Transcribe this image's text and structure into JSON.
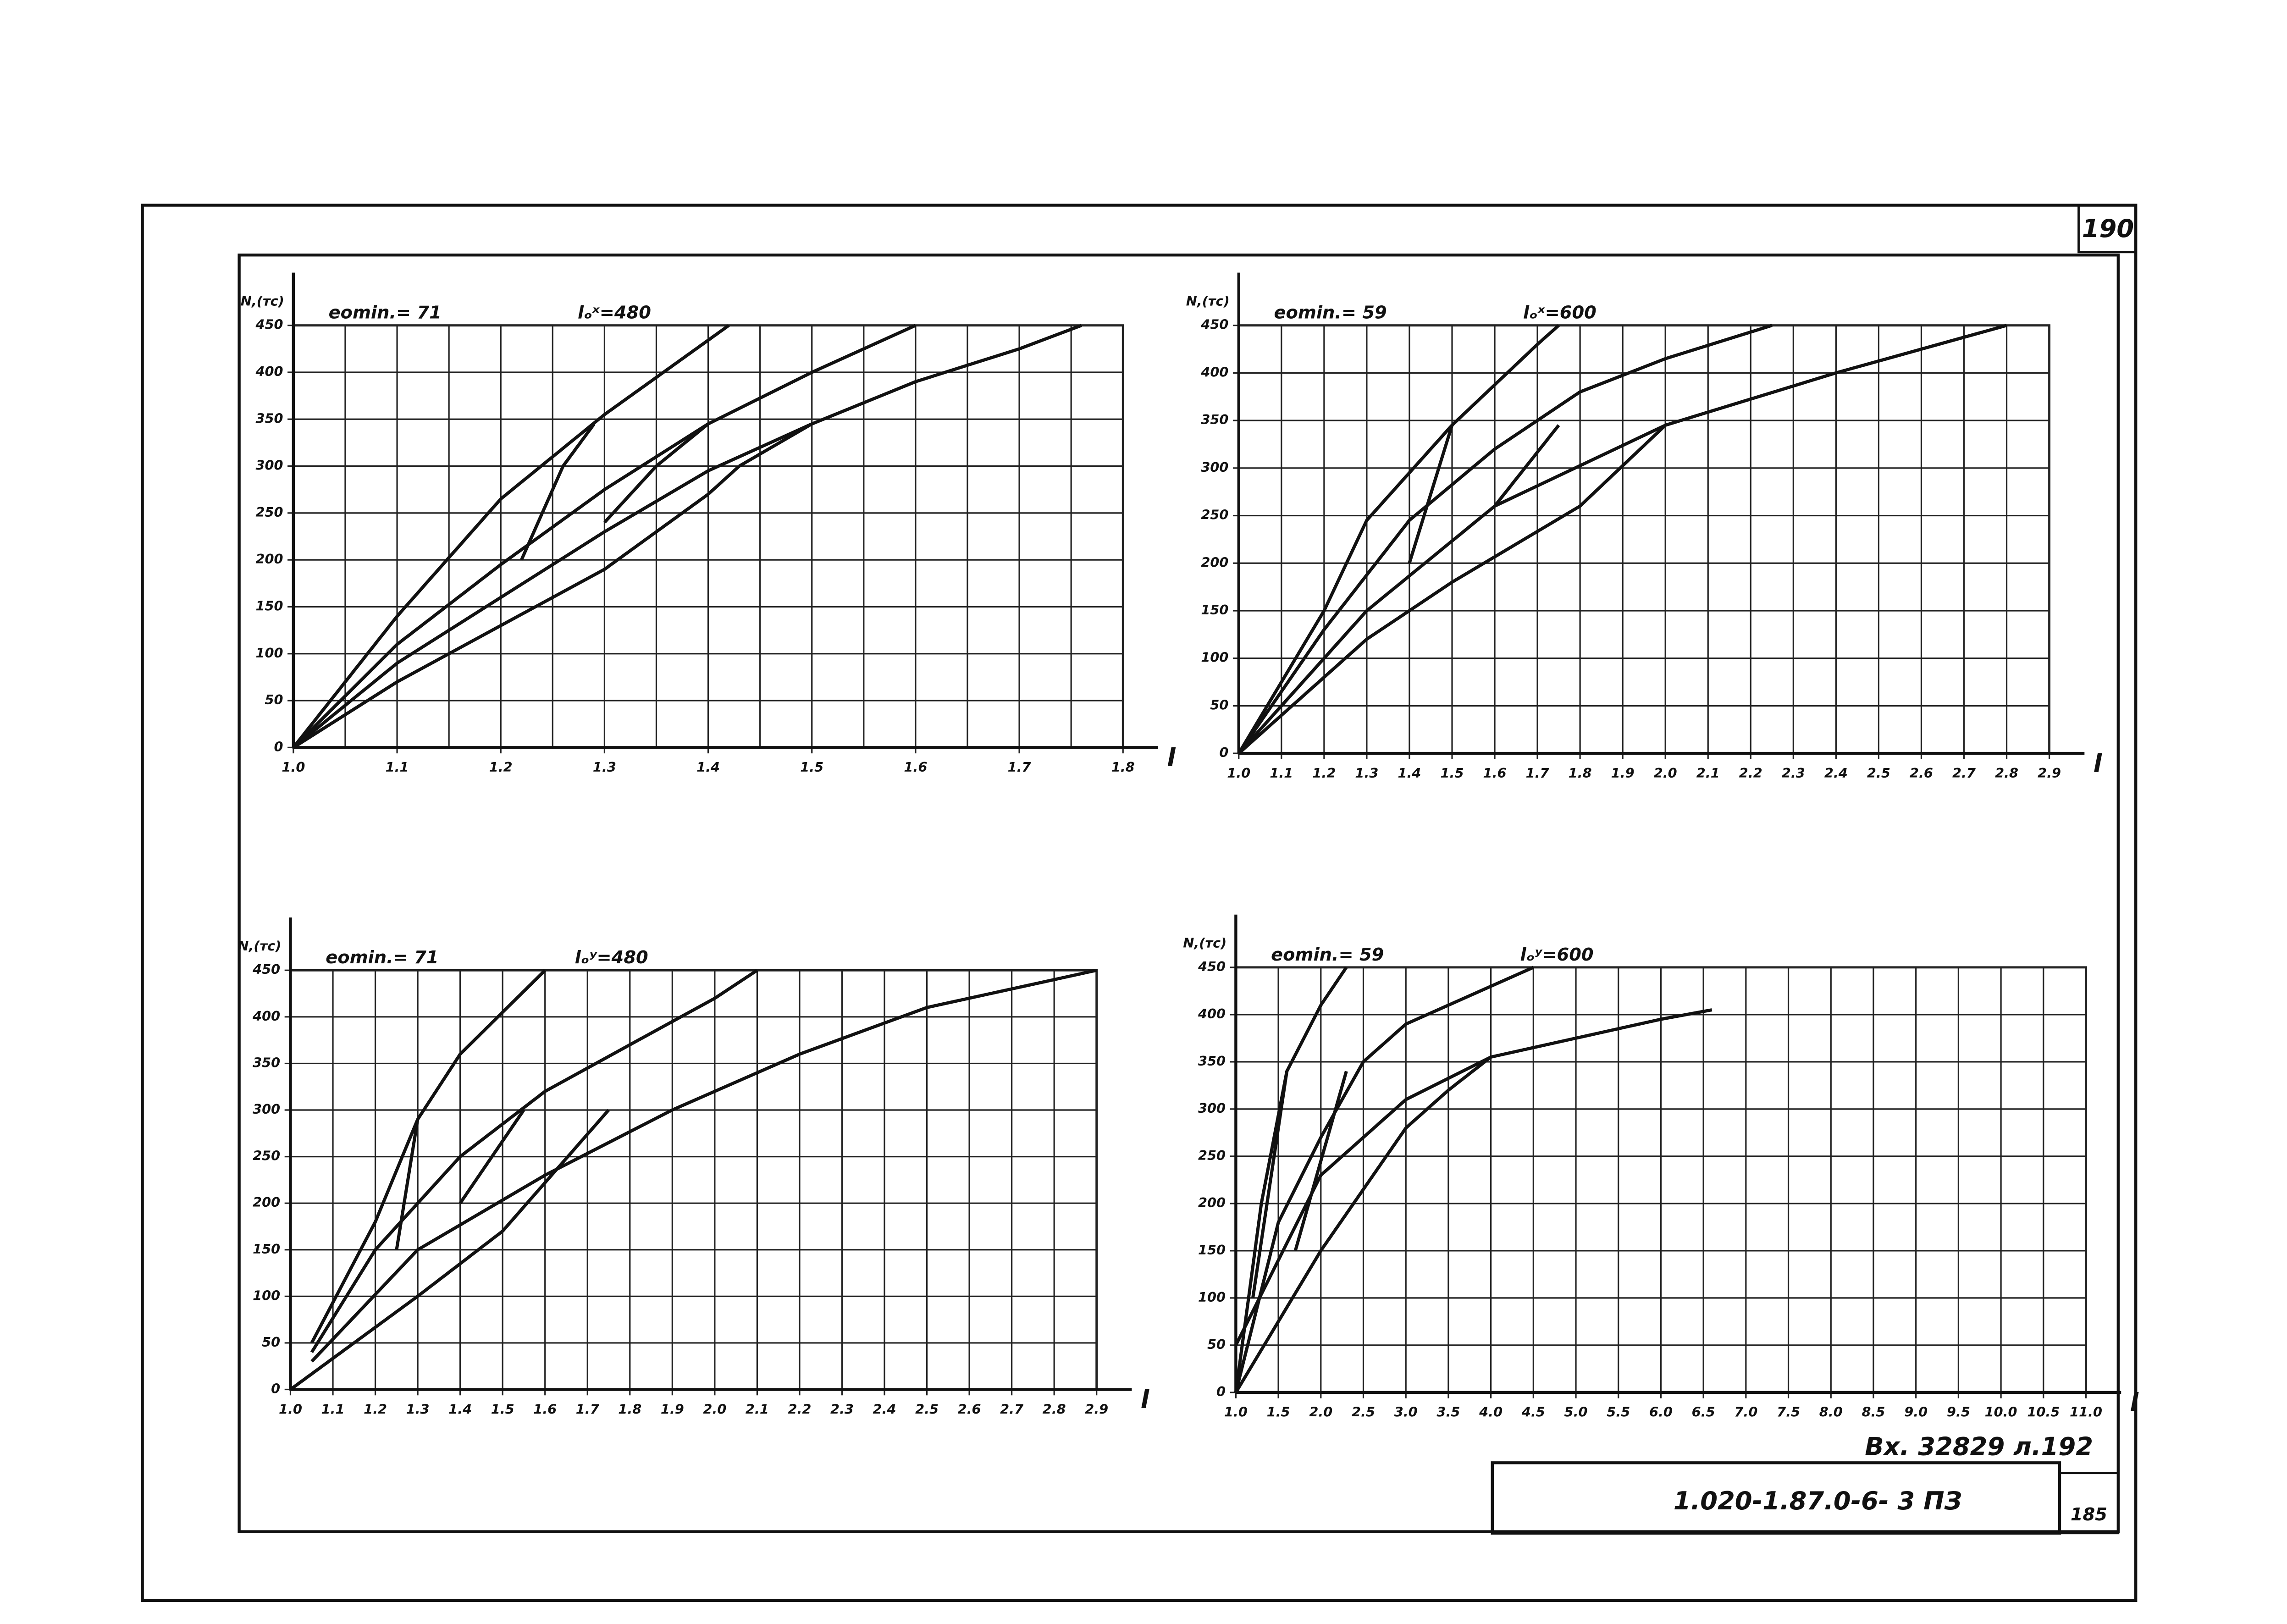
{
  "document": {
    "sheet_number": "190",
    "incoming": "Вх. 32829 л.192",
    "code": "1.020-1.87.0-6- 3 ПЗ",
    "sheet": "185"
  },
  "chart_data": [
    {
      "type": "line",
      "ylabel": "N,(тс)",
      "xlabel": "l",
      "annotations": [
        "eomin.= 71",
        "lₒˣ=480"
      ],
      "xlim": [
        1.0,
        1.8
      ],
      "ylim": [
        0,
        450
      ],
      "xticks": [
        {
          "value": 1.0,
          "label": "1.0"
        },
        1.1,
        1.2,
        1.3,
        1.4,
        1.5,
        1.6,
        1.7,
        1.8
      ],
      "xminor": [
        1.05,
        1.15,
        1.25,
        1.35,
        1.45,
        1.55,
        1.65,
        1.75
      ],
      "yticks": [
        0,
        50,
        100,
        150,
        200,
        250,
        300,
        350,
        400,
        450
      ],
      "series": [
        {
          "color": "#111",
          "x": [
            1.0,
            1.1,
            1.2,
            1.3,
            1.42
          ],
          "values": [
            0,
            140,
            265,
            355,
            450
          ]
        },
        {
          "color": "#111",
          "x": [
            1.0,
            1.1,
            1.2,
            1.3,
            1.4,
            1.5,
            1.6
          ],
          "values": [
            0,
            110,
            195,
            275,
            345,
            400,
            450
          ]
        },
        {
          "color": "#111",
          "x": [
            1.0,
            1.1,
            1.2,
            1.3,
            1.4,
            1.5,
            1.6,
            1.7,
            1.76
          ],
          "values": [
            0,
            90,
            160,
            230,
            295,
            345,
            390,
            425,
            450
          ]
        },
        {
          "color": "#111",
          "x": [
            1.0,
            1.1,
            1.2,
            1.3,
            1.4,
            1.43
          ],
          "values": [
            0,
            70,
            130,
            190,
            270,
            300
          ]
        },
        {
          "color": "#111",
          "x": [
            1.22,
            1.26,
            1.29
          ],
          "values": [
            200,
            300,
            345
          ]
        },
        {
          "color": "#111",
          "x": [
            1.3,
            1.35,
            1.4
          ],
          "values": [
            240,
            300,
            345
          ]
        },
        {
          "color": "#111",
          "x": [
            1.43,
            1.5
          ],
          "values": [
            300,
            345
          ]
        }
      ]
    },
    {
      "type": "line",
      "ylabel": "N,(тс)",
      "xlabel": "l",
      "annotations": [
        "eomin.= 59",
        "lₒˣ=600"
      ],
      "xlim": [
        1.0,
        2.9
      ],
      "ylim": [
        0,
        450
      ],
      "xticks": [
        {
          "value": 1.0,
          "label": "1.0"
        },
        1.1,
        1.2,
        1.3,
        1.4,
        1.5,
        1.6,
        1.7,
        1.8,
        1.9,
        {
          "value": 2.0,
          "label": "2.0"
        },
        2.1,
        2.2,
        2.3,
        2.4,
        2.5,
        2.6,
        2.7,
        2.8,
        2.9
      ],
      "yticks": [
        0,
        50,
        100,
        150,
        200,
        250,
        300,
        350,
        400,
        450
      ],
      "series": [
        {
          "color": "#111",
          "x": [
            1.0,
            1.2,
            1.3,
            1.5,
            1.7,
            1.75
          ],
          "values": [
            0,
            150,
            245,
            345,
            430,
            450
          ]
        },
        {
          "color": "#111",
          "x": [
            1.0,
            1.2,
            1.4,
            1.6,
            1.8,
            2.0,
            2.25
          ],
          "values": [
            0,
            130,
            245,
            320,
            380,
            415,
            450
          ]
        },
        {
          "color": "#111",
          "x": [
            1.0,
            1.3,
            1.6,
            2.0,
            2.4,
            2.8
          ],
          "values": [
            0,
            150,
            260,
            345,
            400,
            450
          ]
        },
        {
          "color": "#111",
          "x": [
            1.0,
            1.3,
            1.5,
            1.8,
            2.0
          ],
          "values": [
            0,
            120,
            180,
            260,
            345
          ]
        },
        {
          "color": "#111",
          "x": [
            1.4,
            1.5
          ],
          "values": [
            200,
            345
          ]
        },
        {
          "color": "#111",
          "x": [
            1.6,
            1.75
          ],
          "values": [
            260,
            345
          ]
        }
      ]
    },
    {
      "type": "line",
      "ylabel": "N,(тс)",
      "xlabel": "l",
      "annotations": [
        "eomin.= 71",
        "lₒʸ=480"
      ],
      "xlim": [
        1.0,
        2.9
      ],
      "ylim": [
        0,
        450
      ],
      "xticks": [
        {
          "value": 1.0,
          "label": "1.0"
        },
        1.1,
        1.2,
        1.3,
        1.4,
        1.5,
        1.6,
        1.7,
        1.8,
        1.9,
        {
          "value": 2.0,
          "label": "2.0"
        },
        2.1,
        2.2,
        2.3,
        2.4,
        2.5,
        2.6,
        2.7,
        2.8,
        2.9
      ],
      "yticks": [
        0,
        50,
        100,
        150,
        200,
        250,
        300,
        350,
        400,
        450
      ],
      "series": [
        {
          "color": "#111",
          "x": [
            1.05,
            1.2,
            1.3,
            1.4,
            1.6
          ],
          "values": [
            50,
            180,
            290,
            360,
            450
          ]
        },
        {
          "color": "#111",
          "x": [
            1.05,
            1.2,
            1.4,
            1.6,
            1.8,
            2.0,
            2.1
          ],
          "values": [
            40,
            150,
            250,
            320,
            370,
            420,
            450
          ]
        },
        {
          "color": "#111",
          "x": [
            1.05,
            1.3,
            1.6,
            1.9,
            2.2,
            2.5,
            2.9
          ],
          "values": [
            30,
            150,
            230,
            300,
            360,
            410,
            450
          ]
        },
        {
          "color": "#111",
          "x": [
            1.0,
            1.3,
            1.5,
            1.75
          ],
          "values": [
            0,
            100,
            170,
            300
          ]
        },
        {
          "color": "#111",
          "x": [
            1.25,
            1.3
          ],
          "values": [
            150,
            290
          ]
        },
        {
          "color": "#111",
          "x": [
            1.4,
            1.55
          ],
          "values": [
            200,
            300
          ]
        }
      ]
    },
    {
      "type": "line",
      "ylabel": "N,(тс)",
      "xlabel": "l",
      "annotations": [
        "eomin.= 59",
        "lₒʸ=600"
      ],
      "xlim": [
        1.0,
        11.0
      ],
      "ylim": [
        0,
        450
      ],
      "xticks": [
        {
          "value": 1.0,
          "label": "1.0"
        },
        1.5,
        {
          "value": 2.0,
          "label": "2.0"
        },
        2.5,
        {
          "value": 3.0,
          "label": "3.0"
        },
        3.5,
        {
          "value": 4.0,
          "label": "4.0"
        },
        4.5,
        {
          "value": 5.0,
          "label": "5.0"
        },
        5.5,
        {
          "value": 6.0,
          "label": "6.0"
        },
        6.5,
        {
          "value": 7.0,
          "label": "7.0"
        },
        7.5,
        {
          "value": 8.0,
          "label": "8.0"
        },
        8.5,
        {
          "value": 9.0,
          "label": "9.0"
        },
        9.5,
        {
          "value": 10.0,
          "label": "10.0"
        },
        10.5,
        {
          "value": 11.0,
          "label": "11.0"
        }
      ],
      "yticks": [
        0,
        50,
        100,
        150,
        200,
        250,
        300,
        350,
        400,
        450
      ],
      "series": [
        {
          "color": "#111",
          "x": [
            1.0,
            1.3,
            1.6,
            2.0,
            2.3
          ],
          "values": [
            0,
            200,
            340,
            410,
            450
          ]
        },
        {
          "color": "#111",
          "x": [
            1.0,
            1.5,
            2.0,
            2.5,
            3.0,
            4.0,
            4.5
          ],
          "values": [
            0,
            180,
            270,
            350,
            390,
            430,
            450
          ]
        },
        {
          "color": "#111",
          "x": [
            1.0,
            2.0,
            3.0,
            4.0,
            5.0,
            6.0,
            6.6
          ],
          "values": [
            50,
            230,
            310,
            355,
            375,
            395,
            405
          ]
        },
        {
          "color": "#111",
          "x": [
            1.0,
            2.0,
            3.0,
            3.5,
            4.0
          ],
          "values": [
            0,
            150,
            280,
            320,
            355
          ]
        },
        {
          "color": "#111",
          "x": [
            1.2,
            1.6
          ],
          "values": [
            100,
            340
          ]
        },
        {
          "color": "#111",
          "x": [
            1.7,
            2.3
          ],
          "values": [
            150,
            340
          ]
        }
      ]
    }
  ]
}
